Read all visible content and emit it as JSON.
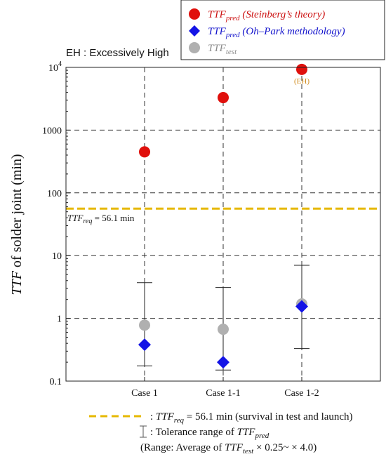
{
  "chart_data": {
    "type": "scatter",
    "y_scale": "log",
    "ylim": [
      0.1,
      10000
    ],
    "ylabel": {
      "italic": "TTF",
      "rest": " of solder joint (min)"
    },
    "y_ticks": [
      {
        "value": 0.1,
        "label": "0.1"
      },
      {
        "value": 1,
        "label": "1"
      },
      {
        "value": 10,
        "label": "10"
      },
      {
        "value": 100,
        "label": "100"
      },
      {
        "value": 1000,
        "label": "1000"
      },
      {
        "value": 10000,
        "base": "10",
        "exp": "4"
      }
    ],
    "grid": "dashed",
    "categories": [
      "Case 1",
      "Case 1-1",
      "Case 1-2"
    ],
    "series": [
      {
        "name": {
          "base": "TTF",
          "sub": "pred",
          "note": " (Steinberg’s theory)"
        },
        "marker": "circle",
        "color": "#e0100c",
        "values": [
          450,
          3300,
          9300
        ]
      },
      {
        "name": {
          "base": "TTF",
          "sub": "pred",
          "note": " (Oh–Park methodology)"
        },
        "marker": "diamond",
        "color": "#1414e6",
        "values": [
          0.38,
          0.2,
          1.55
        ]
      },
      {
        "name": {
          "base": "TTF",
          "sub": "test",
          "note": ""
        },
        "marker": "circle",
        "color": "#b0b0b0",
        "values": [
          0.78,
          0.67,
          1.7
        ]
      }
    ],
    "error_bars": [
      {
        "low": 0.175,
        "high": 3.7
      },
      {
        "low": 0.15,
        "high": 3.1
      },
      {
        "low": 0.33,
        "high": 7.0
      }
    ],
    "reference_line": {
      "value": 56.1,
      "color": "#e6b800",
      "label": {
        "base": "TTF",
        "sub": "req",
        "rest": " = 56.1 min"
      }
    },
    "point_annotation": {
      "category": "Case 1-2",
      "text": "(EH)",
      "color": "#d08a1a"
    },
    "legend_position": "top-right"
  },
  "eh_note": "EH : Excessively High",
  "bottom_legend": {
    "line1": {
      "prefix": ": ",
      "base": "TTF",
      "sub": "req",
      "rest": " = 56.1 min (survival in test and launch)"
    },
    "line2": {
      "prefix": ": Tolerance range of ",
      "base": "TTF",
      "sub": "pred"
    },
    "line3": {
      "prefix": "(Range: Average of ",
      "base": "TTF",
      "sub": "test",
      "rest": " × 0.25~ × 4.0)"
    }
  }
}
